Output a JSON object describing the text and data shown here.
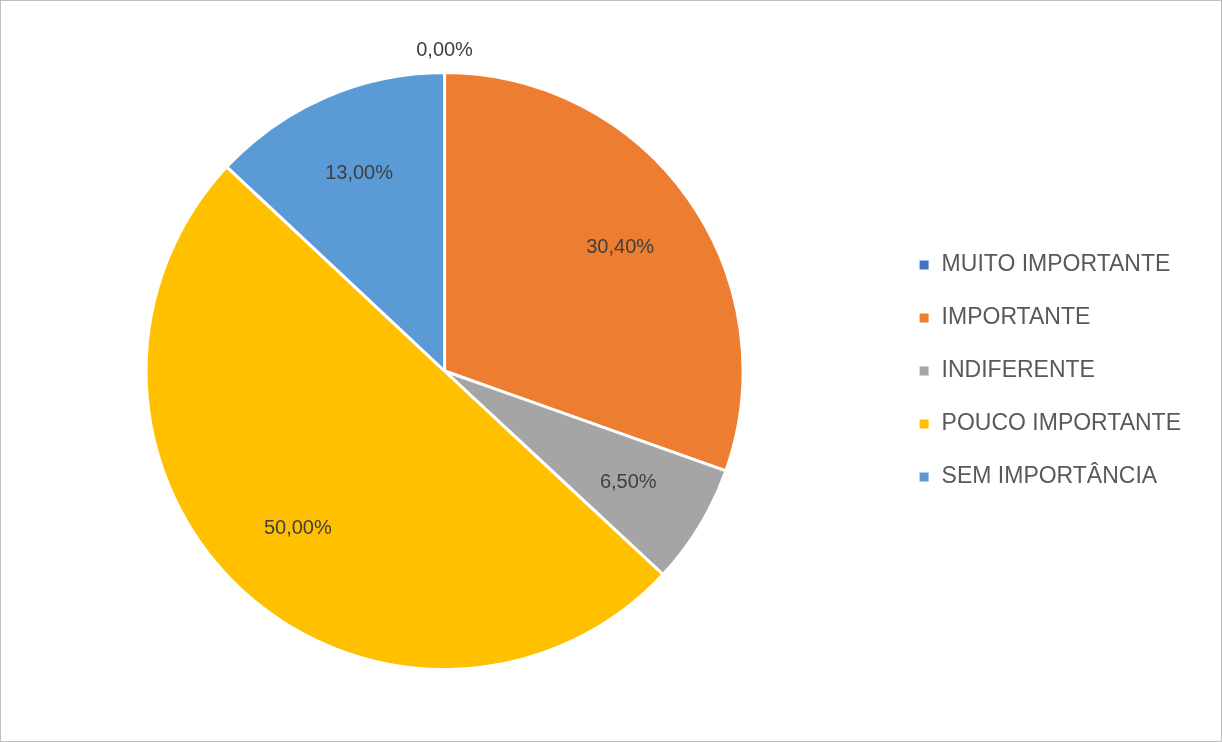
{
  "chart_data": {
    "type": "pie",
    "categories": [
      "MUITO IMPORTANTE",
      "IMPORTANTE",
      "INDIFERENTE",
      "POUCO IMPORTANTE",
      "SEM IMPORTÂNCIA"
    ],
    "values": [
      0,
      30.4,
      6.5,
      50,
      13
    ],
    "value_labels": [
      "0,00%",
      "30,40%",
      "6,50%",
      "50,00%",
      "13,00%"
    ],
    "colors": [
      "#4472c4",
      "#ed7d31",
      "#a5a5a5",
      "#ffc000",
      "#5b9bd5"
    ],
    "legend": "right"
  }
}
